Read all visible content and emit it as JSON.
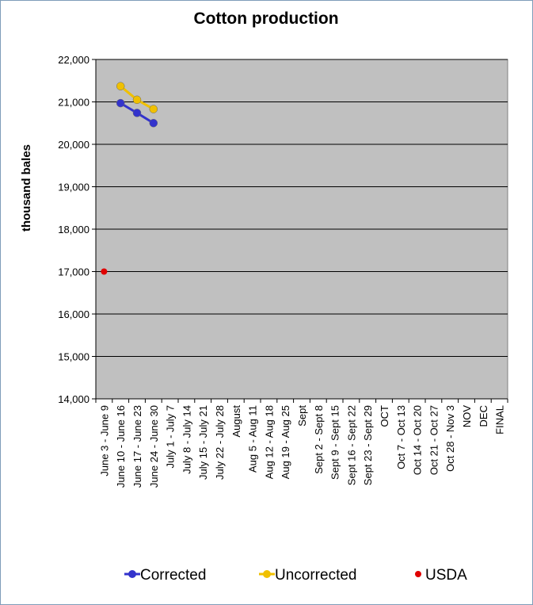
{
  "chart_data": {
    "type": "line",
    "title": "Cotton production",
    "xlabel": "",
    "ylabel": "thousand bales",
    "ylim": [
      14000,
      22000
    ],
    "y_ticks": [
      14000,
      15000,
      16000,
      17000,
      18000,
      19000,
      20000,
      21000,
      22000
    ],
    "y_tick_labels": [
      "14,000",
      "15,000",
      "16,000",
      "17,000",
      "18,000",
      "19,000",
      "20,000",
      "21,000",
      "22,000"
    ],
    "grid": true,
    "legend_position": "bottom",
    "categories": [
      "June 3 - June 9",
      "June 10 - June 16",
      "June 17 - June 23",
      "June 24 - June 30",
      "July 1 - July 7",
      "July 8 - July 14",
      "July 15 - July 21",
      "July 22 - July 28",
      "August",
      "Aug 5 - Aug 11",
      "Aug 12 - Aug 18",
      "Aug 19 - Aug 25",
      "Sept",
      "Sept 2 - Sept 8",
      "Sept 9 - Sept 15",
      "Sept 16 - Sept 22",
      "Sept 23 - Sept 29",
      "OCT",
      "Oct 7 - Oct 13",
      "Oct 14 - Oct 20",
      "Oct 21 - Oct 27",
      "Oct 28 - Nov 3",
      "NOV",
      "DEC",
      "FINAL"
    ],
    "series": [
      {
        "name": "Corrected",
        "color": "#3333cc",
        "marker": "circle",
        "values": [
          null,
          20970,
          20740,
          20500,
          null,
          null,
          null,
          null,
          null,
          null,
          null,
          null,
          null,
          null,
          null,
          null,
          null,
          null,
          null,
          null,
          null,
          null,
          null,
          null,
          null
        ]
      },
      {
        "name": "Uncorrected",
        "color": "#f0c000",
        "marker": "circle",
        "values": [
          null,
          21370,
          21050,
          20830,
          null,
          null,
          null,
          null,
          null,
          null,
          null,
          null,
          null,
          null,
          null,
          null,
          null,
          null,
          null,
          null,
          null,
          null,
          null,
          null,
          null
        ]
      },
      {
        "name": "USDA",
        "color": "#e00000",
        "marker": "circle",
        "line": false,
        "values": [
          17000,
          null,
          null,
          null,
          null,
          null,
          null,
          null,
          null,
          null,
          null,
          null,
          null,
          null,
          null,
          null,
          null,
          null,
          null,
          null,
          null,
          null,
          null,
          null,
          null
        ]
      }
    ],
    "colors": {
      "plot_background": "#c0c0c0",
      "gridline": "#000000"
    }
  }
}
